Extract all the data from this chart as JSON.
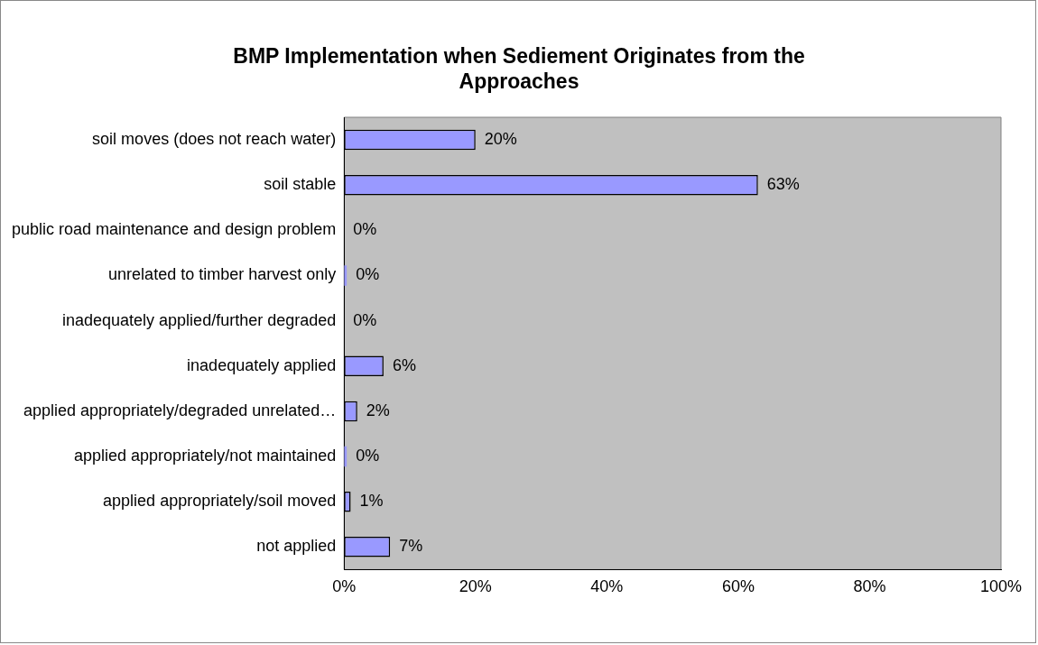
{
  "chart_data": {
    "type": "bar",
    "orientation": "horizontal",
    "title": "BMP Implementation when  Sediement Originates from the Approaches",
    "categories": [
      "soil moves (does not reach water)",
      "soil stable",
      "public road maintenance and design problem",
      "unrelated to timber harvest only",
      "inadequately applied/further degraded",
      "inadequately applied",
      "applied appropriately/degraded unrelated…",
      "applied appropriately/not maintained",
      "applied appropriately/soil moved",
      "not applied"
    ],
    "values": [
      20,
      63,
      0,
      0.4,
      0,
      6,
      2,
      0.4,
      1,
      7
    ],
    "value_labels": [
      "20%",
      "63%",
      "0%",
      "0%",
      "0%",
      "6%",
      "2%",
      "0%",
      "1%",
      "7%"
    ],
    "color": "#9999ff",
    "xlim": [
      0,
      100
    ],
    "xticks": [
      {
        "value": 0,
        "label": "0%"
      },
      {
        "value": 20,
        "label": "20%"
      },
      {
        "value": 40,
        "label": "40%"
      },
      {
        "value": 60,
        "label": "60%"
      },
      {
        "value": 80,
        "label": "80%"
      },
      {
        "value": 100,
        "label": "100%"
      }
    ],
    "grid": false,
    "legend": false
  }
}
